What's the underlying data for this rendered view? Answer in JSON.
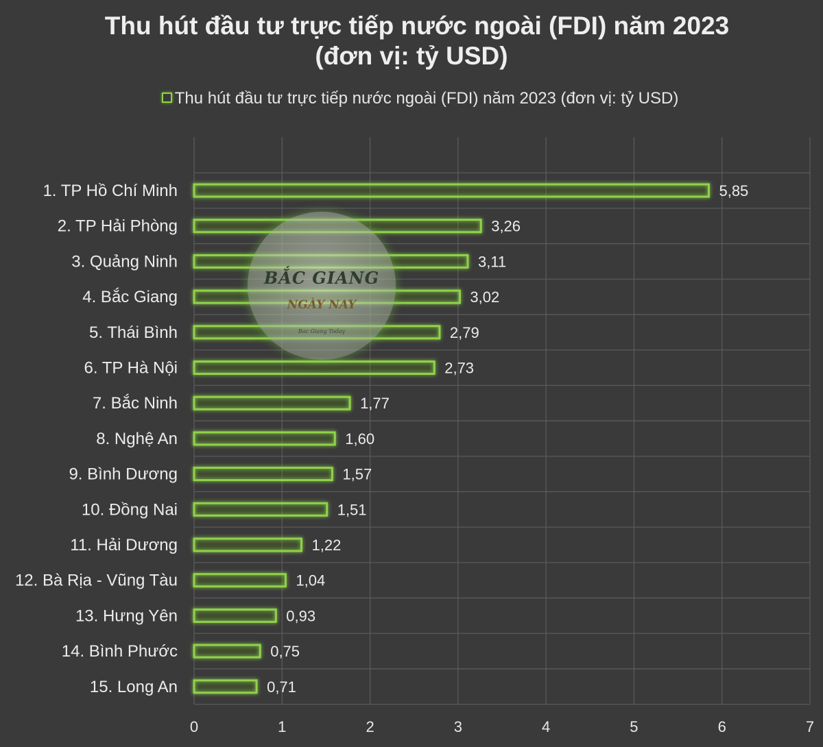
{
  "chart_data": {
    "type": "bar",
    "orientation": "horizontal",
    "title_line1": "Thu hút đầu tư trực tiếp nước ngoài (FDI) năm 2023",
    "title_line2": "(đơn vị: tỷ USD)",
    "legend": "Thu hút đầu tư trực tiếp nước ngoài (FDI) năm 2023 (đơn vị: tỷ USD)",
    "legend_position": "top",
    "categories": [
      "1. TP Hồ Chí Minh",
      "2. TP Hải Phòng",
      "3. Quảng Ninh",
      "4. Bắc Giang",
      "5. Thái Bình",
      "6. TP Hà Nội",
      "7. Bắc Ninh",
      "8. Nghệ An",
      "9. Bình Dương",
      "10. Đồng Nai",
      "11. Hải Dương",
      "12. Bà Rịa - Vũng Tàu",
      "13. Hưng Yên",
      "14. Bình Phước",
      "15. Long An"
    ],
    "values": [
      5.85,
      3.26,
      3.11,
      3.02,
      2.79,
      2.73,
      1.77,
      1.6,
      1.57,
      1.51,
      1.22,
      1.04,
      0.93,
      0.75,
      0.71
    ],
    "value_labels": [
      "5,85",
      "3,26",
      "3,11",
      "3,02",
      "2,79",
      "2,73",
      "1,77",
      "1,60",
      "1,57",
      "1,51",
      "1,22",
      "1,04",
      "0,93",
      "0,75",
      "0,71"
    ],
    "xlim": [
      0,
      7
    ],
    "xticks": [
      "0",
      "1",
      "2",
      "3",
      "4",
      "5",
      "6",
      "7"
    ],
    "grid": true,
    "colors": {
      "background": "#3a3a3a",
      "bar_outline": "#8fd34a",
      "bar_glow": "#6cc21f",
      "gridline": "#5a5a5a"
    }
  },
  "watermark": {
    "line1": "BẮC GIANG",
    "line2": "NGÀY NAY",
    "line3": "Bac Giang Today"
  }
}
